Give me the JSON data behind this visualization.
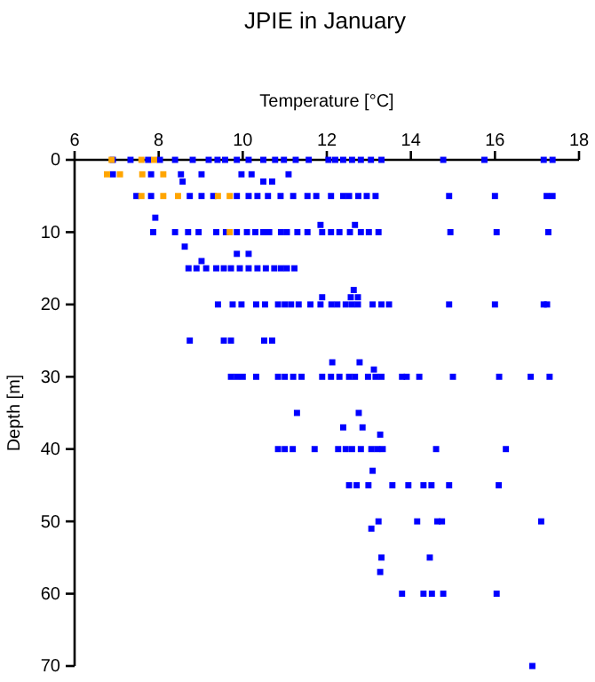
{
  "chart_data": {
    "type": "scatter",
    "title": "JPIE in January",
    "xlabel": "Temperature [°C]",
    "ylabel": "Depth [m]",
    "xlim": [
      6,
      18
    ],
    "xticks": [
      6,
      8,
      10,
      12,
      14,
      16,
      18
    ],
    "ylim": [
      70,
      0
    ],
    "yticks": [
      0,
      10,
      20,
      30,
      40,
      50,
      60,
      70
    ],
    "marker": "square",
    "series": [
      {
        "color": "#0000ff",
        "x": [
          6.91,
          7.33,
          7.75,
          8.03,
          8.39,
          8.81,
          9.19,
          9.4,
          9.58,
          9.86,
          10.14,
          10.49,
          10.77,
          10.98,
          11.26,
          11.57,
          12.04,
          12.2,
          12.39,
          12.6,
          12.81,
          13.05,
          13.3,
          14.77,
          15.75,
          17.16,
          17.37,
          6.91,
          7.82,
          8.53,
          9.02,
          9.97,
          10.21,
          11.09,
          8.57,
          10.49,
          10.7,
          7.47,
          7.82,
          8.74,
          9.02,
          9.3,
          9.86,
          10.14,
          10.35,
          10.6,
          10.9,
          11.2,
          11.54,
          11.75,
          12.1,
          12.39,
          12.53,
          12.75,
          12.95,
          13.16,
          14.91,
          16.0,
          17.23,
          17.37,
          7.92,
          11.85,
          12.67,
          7.87,
          8.39,
          8.7,
          8.95,
          9.37,
          9.6,
          9.86,
          10.1,
          10.3,
          10.49,
          10.63,
          10.91,
          11.05,
          11.3,
          11.54,
          11.89,
          12.1,
          12.3,
          12.55,
          12.81,
          13.0,
          13.23,
          14.94,
          16.04,
          17.27,
          8.62,
          9.86,
          10.14,
          9.02,
          8.71,
          8.9,
          9.13,
          9.37,
          9.55,
          9.72,
          9.93,
          10.14,
          10.35,
          10.55,
          10.75,
          10.91,
          11.05,
          11.23,
          12.64,
          11.89,
          12.57,
          12.74,
          9.41,
          9.76,
          9.97,
          10.32,
          10.53,
          10.84,
          11.0,
          11.15,
          11.33,
          11.61,
          11.85,
          12.11,
          12.25,
          12.45,
          12.6,
          12.74,
          13.09,
          13.3,
          13.48,
          14.91,
          16.0,
          17.16,
          17.24,
          8.74,
          9.55,
          9.72,
          10.51,
          10.7,
          12.13,
          12.78,
          13.12,
          9.72,
          9.86,
          10.0,
          10.32,
          10.84,
          11.0,
          11.2,
          11.4,
          11.89,
          12.1,
          12.3,
          12.53,
          12.67,
          12.98,
          13.16,
          13.3,
          13.79,
          13.9,
          14.2,
          15.0,
          16.1,
          16.85,
          17.3,
          11.29,
          12.76,
          12.39,
          12.85,
          13.27,
          10.84,
          11.0,
          11.19,
          11.71,
          12.27,
          12.45,
          12.6,
          12.81,
          13.06,
          13.2,
          13.33,
          14.6,
          16.26,
          13.09,
          12.53,
          12.71,
          12.99,
          13.56,
          13.94,
          14.3,
          14.49,
          14.91,
          16.09,
          13.23,
          14.15,
          14.63,
          14.74,
          17.1,
          13.06,
          13.3,
          14.45,
          13.27,
          13.79,
          14.3,
          14.5,
          14.77,
          16.04,
          16.89
        ],
        "values": [
          0,
          0,
          0,
          0,
          0,
          0,
          0,
          0,
          0,
          0,
          0,
          0,
          0,
          0,
          0,
          0,
          0,
          0,
          0,
          0,
          0,
          0,
          0,
          0,
          0,
          0,
          0,
          2,
          2,
          2,
          2,
          2,
          2,
          2,
          3,
          3,
          3,
          5,
          5,
          5,
          5,
          5,
          5,
          5,
          5,
          5,
          5,
          5,
          5,
          5,
          5,
          5,
          5,
          5,
          5,
          5,
          5,
          5,
          5,
          5,
          8,
          9,
          9,
          10,
          10,
          10,
          10,
          10,
          10,
          10,
          10,
          10,
          10,
          10,
          10,
          10,
          10,
          10,
          10,
          10,
          10,
          10,
          10,
          10,
          10,
          10,
          10,
          10,
          12,
          13,
          13,
          14,
          15,
          15,
          15,
          15,
          15,
          15,
          15,
          15,
          15,
          15,
          15,
          15,
          15,
          15,
          18,
          19,
          19,
          19,
          20,
          20,
          20,
          20,
          20,
          20,
          20,
          20,
          20,
          20,
          20,
          20,
          20,
          20,
          20,
          20,
          20,
          20,
          20,
          20,
          20,
          20,
          20,
          25,
          25,
          25,
          25,
          25,
          28,
          28,
          29,
          30,
          30,
          30,
          30,
          30,
          30,
          30,
          30,
          30,
          30,
          30,
          30,
          30,
          30,
          30,
          30,
          30,
          30,
          30,
          30,
          30,
          30,
          30,
          35,
          35,
          37,
          37,
          38,
          40,
          40,
          40,
          40,
          40,
          40,
          40,
          40,
          40,
          40,
          40,
          40,
          40,
          43,
          45,
          45,
          45,
          45,
          45,
          45,
          45,
          45,
          45,
          50,
          50,
          50,
          50,
          50,
          51,
          55,
          55,
          57,
          60,
          60,
          60,
          60,
          60,
          70
        ]
      },
      {
        "color": "#ffa500",
        "x": [
          6.88,
          7.59,
          7.89,
          6.77,
          7.08,
          7.61,
          8.11,
          7.59,
          8.11,
          8.46,
          9.41,
          9.69,
          9.69
        ],
        "values": [
          0,
          0,
          0,
          2,
          2,
          2,
          2,
          5,
          5,
          5,
          5,
          5,
          10
        ]
      }
    ]
  }
}
